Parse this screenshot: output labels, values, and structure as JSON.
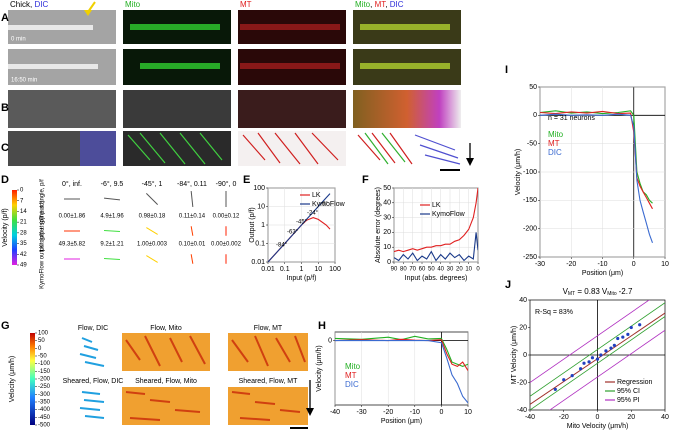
{
  "panel_labels": [
    "A",
    "B",
    "C",
    "D",
    "E",
    "F",
    "G",
    "H",
    "I",
    "J"
  ],
  "image_headers": [
    [
      {
        "text": "Chick, ",
        "color": "#000000"
      },
      {
        "text": "DIC",
        "color": "#2b2bd9"
      }
    ],
    [
      {
        "text": "Mito",
        "color": "#22b022"
      }
    ],
    [
      {
        "text": "MT",
        "color": "#e02020"
      }
    ],
    [
      {
        "text": "Mito",
        "color": "#22b022"
      },
      {
        "text": ", ",
        "color": "#000000"
      },
      {
        "text": "MT",
        "color": "#e02020"
      },
      {
        "text": ", ",
        "color": "#000000"
      },
      {
        "text": "DIC",
        "color": "#2b2bd9"
      }
    ]
  ],
  "time_labels": [
    "0 min",
    "16:50 min"
  ],
  "table_D": {
    "columns": [
      "0°, inf.",
      "-6°, 9.5",
      "-45°, 1",
      "-84°, 0.11",
      "-90°, 0"
    ],
    "row_labels": [
      "Input angle, p/f",
      "LK output (p/f ± sd)",
      "KymoFlow output (p/f ± sd)"
    ],
    "rows": [
      [
        "0.00±1.86",
        "4.9±1.96",
        "0.98±0.18",
        "0.11±0.14",
        "0.00±0.12"
      ],
      [
        "49.3±5.82",
        "9.2±1.21",
        "1.00±0.003",
        "0.10±0.01",
        "0.00±0.002"
      ]
    ]
  },
  "colorbar_D": {
    "label": "Velocity (p/f)",
    "lim": [
      0,
      49
    ],
    "ticks": [
      0,
      7,
      14,
      21,
      28,
      35,
      42,
      49
    ]
  },
  "flow_labels": [
    "Flow, DIC",
    "Flow, Mito",
    "Flow, MT",
    "Sheared, Flow, DIC",
    "Sheared, Flow, Mito",
    "Sheared, Flow, MT"
  ],
  "colorbar_G": {
    "label": "Velocity (μm/h)",
    "lim": [
      100,
      -500
    ],
    "ticks": [
      100,
      50,
      0,
      -50,
      -100,
      -150,
      -200,
      -250,
      -300,
      -350,
      -400,
      -450,
      -500
    ]
  },
  "chart_data": [
    {
      "type": "line",
      "log": true,
      "xlabel": "Input (p/f)",
      "ylabel": "Output (p/f)",
      "xlim": [
        0.01,
        100
      ],
      "ylim": [
        0.01,
        100
      ],
      "xticks": [
        0.01,
        0.1,
        1,
        10,
        100
      ],
      "yticks": [
        0.01,
        0.1,
        1,
        10,
        100
      ],
      "grid": true,
      "legend_style": "line",
      "x": [
        0.01,
        0.1,
        0.3,
        1,
        2,
        5,
        10,
        30,
        50
      ],
      "series": [
        {
          "name": "LK",
          "color": "#e02020",
          "values": [
            0.01,
            0.1,
            0.3,
            1,
            1.8,
            2.5,
            2,
            1,
            0.6
          ]
        },
        {
          "name": "KymoFlow",
          "color": "#1a3a8a",
          "values": [
            0.01,
            0.1,
            0.3,
            1,
            2,
            5,
            10,
            30,
            50
          ]
        }
      ],
      "annotations": [
        "-84°",
        "-63°",
        "-45°",
        "-24°",
        "-6°"
      ]
    },
    {
      "type": "line",
      "xlabel": "Input (abs. degrees)",
      "ylabel": "Absolute error (degrees)",
      "xlim": [
        90,
        0
      ],
      "ylim": [
        0,
        50
      ],
      "xticks": [
        90,
        80,
        70,
        60,
        50,
        40,
        30,
        20,
        10,
        0
      ],
      "yticks": [
        0,
        10,
        20,
        30,
        40,
        50
      ],
      "grid": true,
      "legend_style": "line",
      "x": [
        90,
        85,
        80,
        75,
        70,
        65,
        60,
        55,
        50,
        45,
        40,
        35,
        30,
        25,
        20,
        15,
        10,
        5,
        2,
        0
      ],
      "series": [
        {
          "name": "LK",
          "color": "#e02020",
          "values": [
            7,
            8,
            7,
            8,
            9,
            8,
            9,
            10,
            10,
            11,
            11,
            12,
            12,
            14,
            15,
            18,
            22,
            30,
            40,
            50
          ]
        },
        {
          "name": "KymoFlow",
          "color": "#1a3a8a",
          "values": [
            3,
            1,
            5,
            2,
            6,
            1,
            4,
            2,
            7,
            1,
            5,
            2,
            6,
            3,
            5,
            1,
            4,
            2,
            20,
            8
          ]
        }
      ]
    },
    {
      "type": "line",
      "xlabel": "Position (μm)",
      "ylabel": "Velocity (μm/h)",
      "xlim": [
        -40,
        10
      ],
      "ylim": [
        -150,
        20
      ],
      "xticks": [
        -40,
        -30,
        -20,
        -10,
        0,
        10
      ],
      "yticks": [
        0
      ],
      "grid": true,
      "zero_lines": true,
      "legend_style": "text",
      "x": [
        -40,
        -30,
        -20,
        -15,
        -10,
        -5,
        0,
        2,
        4,
        6,
        8,
        10
      ],
      "series": [
        {
          "name": "Mito",
          "color": "#22b022",
          "values": [
            5,
            3,
            8,
            2,
            10,
            4,
            5,
            -20,
            -50,
            -55,
            -60,
            -55
          ]
        },
        {
          "name": "MT",
          "color": "#e02020",
          "values": [
            0,
            2,
            0,
            3,
            1,
            0,
            2,
            -30,
            -55,
            -60,
            -50,
            -70
          ]
        },
        {
          "name": "DIC",
          "color": "#3a6ad0",
          "values": [
            0,
            0,
            0,
            0,
            0,
            0,
            -5,
            -40,
            -80,
            -100,
            -130,
            -145
          ]
        }
      ]
    },
    {
      "type": "line",
      "xlabel": "Position (μm)",
      "ylabel": "Velocity (μm/h)",
      "xlim": [
        -30,
        10
      ],
      "ylim": [
        -250,
        50
      ],
      "xticks": [
        -30,
        -20,
        -10,
        0,
        10
      ],
      "yticks": [
        50,
        0,
        -50,
        -100,
        -150,
        -200,
        -250
      ],
      "grid": true,
      "zero_lines": true,
      "legend_style": "text",
      "x": [
        -30,
        -25,
        -20,
        -15,
        -10,
        -5,
        -1,
        0,
        1,
        2,
        3,
        4,
        5,
        6
      ],
      "series": [
        {
          "name": "Mito",
          "color": "#22b022",
          "values": [
            5,
            8,
            4,
            6,
            3,
            5,
            8,
            0,
            -100,
            -120,
            -135,
            -140,
            -150,
            -155
          ]
        },
        {
          "name": "MT",
          "color": "#e02020",
          "values": [
            5,
            3,
            6,
            4,
            7,
            3,
            4,
            -30,
            -110,
            -125,
            -135,
            -145,
            -155,
            -165
          ]
        },
        {
          "name": "DIC",
          "color": "#3a6ad0",
          "values": [
            0,
            2,
            0,
            1,
            0,
            2,
            0,
            -20,
            -115,
            -150,
            -170,
            -190,
            -210,
            -225
          ]
        }
      ],
      "annotations": [
        "n = 31 neurons"
      ]
    },
    {
      "type": "scatter",
      "xlabel": "Mito Velocity (μm/h)",
      "ylabel": "MT Velocity (μm/h)",
      "xlim": [
        -40,
        40
      ],
      "ylim": [
        -40,
        40
      ],
      "xticks": [
        -40,
        -20,
        0,
        20,
        40
      ],
      "yticks": [
        -40,
        -20,
        0,
        20,
        40
      ],
      "zero_lines": true,
      "legend_style": "line",
      "series": [
        {
          "color": "#2040c0",
          "x": [
            -25,
            -20,
            -15,
            -10,
            -8,
            -5,
            -3,
            0,
            2,
            5,
            8,
            10,
            12,
            15,
            18,
            20,
            25
          ],
          "values": [
            -25,
            -18,
            -15,
            -10,
            -6,
            -5,
            -2,
            -3,
            0,
            3,
            5,
            7,
            12,
            13,
            15,
            20,
            22
          ]
        }
      ],
      "fit": {
        "name": "Regression",
        "color": "#a0302a",
        "slope": 0.83,
        "intercept": -2.7
      },
      "bands": [
        {
          "name": "95% CI",
          "color": "#30a030",
          "x": [
            -40,
            40
          ],
          "lower": [
            -40,
            28
          ],
          "upper": [
            -30,
            38
          ]
        },
        {
          "name": "95% PI",
          "color": "#b030c0",
          "x": [
            -40,
            40
          ],
          "lower": [
            -50,
            18
          ],
          "upper": [
            -20,
            48
          ]
        }
      ],
      "equation": {
        "lhs": "V",
        "lhs_sub": "MT",
        "eq": " = ",
        "var": "V",
        "var_sub": "Mito"
      },
      "annotations": [
        "R-Sq = 83%"
      ]
    }
  ]
}
